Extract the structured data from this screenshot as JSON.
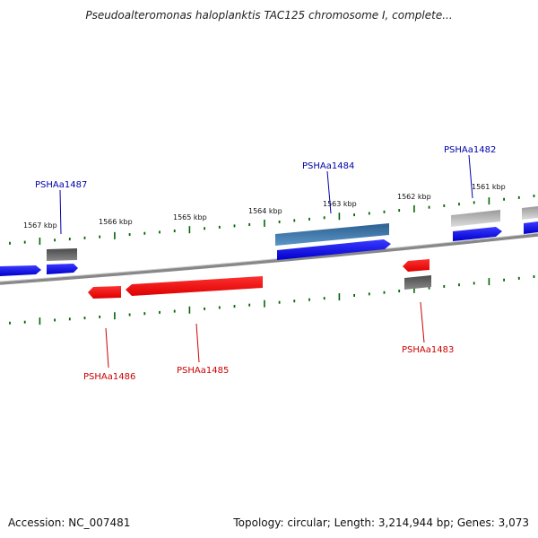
{
  "title": "Pseudoalteromonas haloplanktis TAC125 chromosome I, complete...",
  "accession": "Accession: NC_007481",
  "topology": "Topology: circular; Length: 3,214,944 bp; Genes: 3,073",
  "colors": {
    "forward_cds": "#0000ee",
    "reverse_cds": "#ee0000",
    "gene_grey": "#666666",
    "highlight_gene": "#4a86b8",
    "backbone": "#777777",
    "tick": "#006600",
    "forward_label": "#0000aa",
    "reverse_label": "#cc0000"
  },
  "kbp_labels": [
    "1567 kbp",
    "1566 kbp",
    "1565 kbp",
    "1564 kbp",
    "1563 kbp",
    "1562 kbp",
    "1561 kbp"
  ],
  "gene_labels": {
    "forward": [
      "PSHAa1487",
      "PSHAa1484",
      "PSHAa1482"
    ],
    "reverse": [
      "PSHAa1486",
      "PSHAa1485",
      "PSHAa1483"
    ]
  }
}
